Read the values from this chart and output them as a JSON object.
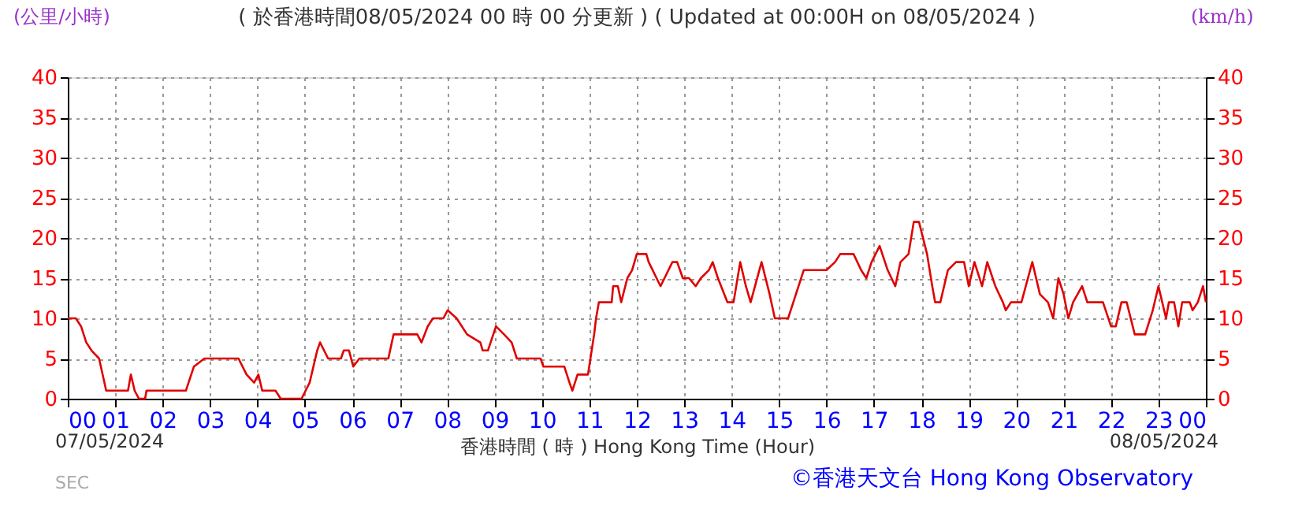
{
  "chart_data": {
    "type": "line",
    "title": "( 於香港時間08/05/2024 00 時 00 分更新 ) ( Updated at 00:00H on 08/05/2024 )",
    "xlabel": "香港時間 ( 時 )  Hong Kong Time (Hour)",
    "ylabel": "(公里/小時)",
    "y2label": "(km/h)",
    "annotations": [
      "07/05/2024",
      "08/05/2024",
      "SEC",
      "©香港天文台 Hong Kong Observatory"
    ],
    "series": [
      {
        "color": "#e00000",
        "x": [
          0,
          0.17,
          0.28,
          0.39,
          0.5,
          0.66,
          0.81,
          1.27,
          1.33,
          1.41,
          1.5,
          1.63,
          1.66,
          2.49,
          2.66,
          2.88,
          3.16,
          3.27,
          3.6,
          3.77,
          3.93,
          4.02,
          4.1,
          4.38,
          4.49,
          4.93,
          5.1,
          5.26,
          5.32,
          5.49,
          5.76,
          5.82,
          5.93,
          6.02,
          6.15,
          6.76,
          6.87,
          7.37,
          7.46,
          7.59,
          7.7,
          7.92,
          8.01,
          8.2,
          8.42,
          8.7,
          8.75,
          8.86,
          9.03,
          9.2,
          9.36,
          9.47,
          9.97,
          10.03,
          10.47,
          10.58,
          10.64,
          10.75,
          10.97,
          11.1,
          11.14,
          11.2,
          11.47,
          11.5,
          11.6,
          11.67,
          11.8,
          11.9,
          12.0,
          12.2,
          12.25,
          12.5,
          12.75,
          12.85,
          12.97,
          13.1,
          13.24,
          13.35,
          13.52,
          13.6,
          13.71,
          13.91,
          14.04,
          14.18,
          14.3,
          14.4,
          14.63,
          14.8,
          14.91,
          15.19,
          15.3,
          15.52,
          15.68,
          16.0,
          16.18,
          16.29,
          16.57,
          16.73,
          16.84,
          16.95,
          17.12,
          17.29,
          17.45,
          17.56,
          17.73,
          17.84,
          17.95,
          18.12,
          18.23,
          18.29,
          18.4,
          18.56,
          18.73,
          18.9,
          19.0,
          19.12,
          19.28,
          19.39,
          19.56,
          19.72,
          19.78,
          19.89,
          20.11,
          20.34,
          20.5,
          20.67,
          20.78,
          20.89,
          21.0,
          21.1,
          21.2,
          21.39,
          21.5,
          21.83,
          22.0,
          22.1,
          22.22,
          22.33,
          22.5,
          22.72,
          22.88,
          23.0,
          23.16,
          23.22,
          23.33,
          23.42,
          23.5,
          23.66,
          23.72,
          23.83,
          23.94,
          24
        ],
        "values": [
          10,
          10,
          9,
          7,
          6,
          5,
          1,
          1,
          3,
          1,
          0,
          0,
          1,
          1,
          4,
          5,
          5,
          5,
          5,
          3,
          2,
          3,
          1,
          1,
          0,
          0,
          2,
          6,
          7,
          5,
          5,
          6,
          6,
          4,
          5,
          5,
          8,
          8,
          7,
          9,
          10,
          10,
          11,
          10,
          8,
          7,
          6,
          6,
          9,
          8,
          7,
          5,
          5,
          4,
          4,
          2,
          1,
          3,
          3,
          8,
          10,
          12,
          12,
          14,
          14,
          12,
          15,
          16,
          18,
          18,
          17,
          14,
          17,
          17,
          15,
          15,
          14,
          15,
          16,
          17,
          15,
          12,
          12,
          17,
          14,
          12,
          17,
          13,
          10,
          10,
          12,
          16,
          16,
          16,
          17,
          18,
          18,
          16,
          15,
          17,
          19,
          16,
          14,
          17,
          18,
          22,
          22,
          18,
          14,
          12,
          12,
          16,
          17,
          17,
          14,
          17,
          14,
          17,
          14,
          12,
          11,
          12,
          12,
          17,
          13,
          12,
          10,
          15,
          13,
          10,
          12,
          14,
          12,
          12,
          9,
          9,
          12,
          12,
          8,
          8,
          11,
          14,
          10,
          12,
          12,
          9,
          12,
          12,
          11,
          12,
          14,
          12
        ]
      }
    ],
    "xlim": [
      0,
      24
    ],
    "xticks": [
      {
        "value": 0,
        "label": "00"
      },
      {
        "value": 1,
        "label": "01"
      },
      {
        "value": 2,
        "label": "02"
      },
      {
        "value": 3,
        "label": "03"
      },
      {
        "value": 4,
        "label": "04"
      },
      {
        "value": 5,
        "label": "05"
      },
      {
        "value": 6,
        "label": "06"
      },
      {
        "value": 7,
        "label": "07"
      },
      {
        "value": 8,
        "label": "08"
      },
      {
        "value": 9,
        "label": "09"
      },
      {
        "value": 10,
        "label": "10"
      },
      {
        "value": 11,
        "label": "11"
      },
      {
        "value": 12,
        "label": "12"
      },
      {
        "value": 13,
        "label": "13"
      },
      {
        "value": 14,
        "label": "14"
      },
      {
        "value": 15,
        "label": "15"
      },
      {
        "value": 16,
        "label": "16"
      },
      {
        "value": 17,
        "label": "17"
      },
      {
        "value": 18,
        "label": "18"
      },
      {
        "value": 19,
        "label": "19"
      },
      {
        "value": 20,
        "label": "20"
      },
      {
        "value": 21,
        "label": "21"
      },
      {
        "value": 22,
        "label": "22"
      },
      {
        "value": 23,
        "label": "23"
      },
      {
        "value": 24,
        "label": "00"
      }
    ],
    "ylim": [
      0,
      40
    ],
    "yticks": [
      0,
      5,
      10,
      15,
      20,
      25,
      30,
      35,
      40
    ],
    "y2lim": [
      0,
      40
    ],
    "y2ticks": [
      0,
      5,
      10,
      15,
      20,
      25,
      30,
      35,
      40
    ],
    "grid": true,
    "marker": "none",
    "line_style": "solid"
  }
}
